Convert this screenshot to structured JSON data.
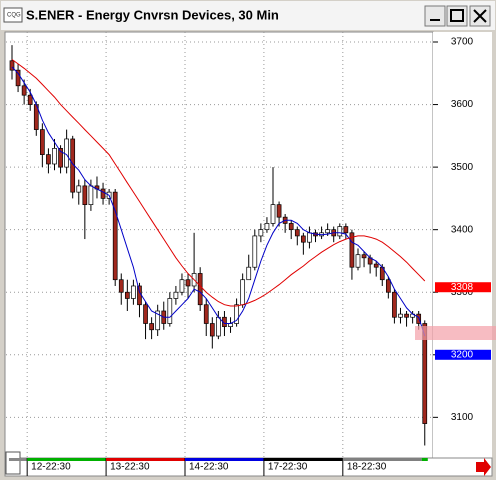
{
  "chart_data": {
    "type": "candlestick",
    "title": "S.ENER - Energy Cnvrsn Devices, 30 Min",
    "categories": [
      null,
      null,
      null,
      "12-22:30",
      null,
      null,
      null,
      null,
      null,
      null,
      null,
      null,
      null,
      null,
      null,
      null,
      "13-22:30",
      null,
      null,
      null,
      null,
      null,
      null,
      null,
      null,
      null,
      null,
      null,
      null,
      "14-22:30",
      null,
      null,
      null,
      null,
      null,
      null,
      null,
      null,
      null,
      null,
      null,
      null,
      "17-22:30",
      null,
      null,
      null,
      null,
      null,
      null,
      null,
      null,
      null,
      null,
      null,
      null,
      "18-22:30",
      null,
      null,
      null,
      null,
      null,
      null,
      null,
      null,
      null,
      null,
      null,
      null,
      null
    ],
    "open": [
      3670,
      3655,
      3630,
      3615,
      3600,
      3560,
      3520,
      3505,
      3530,
      3500,
      3545,
      3460,
      3470,
      3440,
      3470,
      3465,
      3450,
      3460,
      3320,
      3300,
      3290,
      3310,
      3280,
      3250,
      3240,
      3270,
      3250,
      3290,
      3300,
      3320,
      3310,
      3330,
      3280,
      3250,
      3230,
      3260,
      3245,
      3250,
      3280,
      3320,
      3340,
      3390,
      3400,
      3410,
      3440,
      3420,
      3410,
      3400,
      3390,
      3380,
      3395,
      3390,
      3395,
      3400,
      3390,
      3405,
      3395,
      3340,
      3360,
      3355,
      3345,
      3340,
      3320,
      3300,
      3260,
      3265,
      3260,
      3265,
      3250
    ],
    "high": [
      3695,
      3665,
      3640,
      3625,
      3605,
      3570,
      3530,
      3545,
      3535,
      3560,
      3550,
      3480,
      3480,
      3480,
      3485,
      3475,
      3465,
      3465,
      3330,
      3320,
      3320,
      3315,
      3285,
      3260,
      3280,
      3285,
      3300,
      3310,
      3330,
      3330,
      3395,
      3340,
      3290,
      3260,
      3270,
      3270,
      3260,
      3290,
      3330,
      3360,
      3400,
      3410,
      3420,
      3500,
      3445,
      3425,
      3415,
      3405,
      3395,
      3405,
      3400,
      3405,
      3410,
      3405,
      3410,
      3410,
      3400,
      3370,
      3365,
      3360,
      3350,
      3345,
      3325,
      3305,
      3275,
      3270,
      3270,
      3270,
      3255
    ],
    "low": [
      3640,
      3620,
      3600,
      3590,
      3550,
      3500,
      3490,
      3495,
      3490,
      3490,
      3450,
      3440,
      3385,
      3430,
      3450,
      3440,
      3440,
      3310,
      3280,
      3270,
      3280,
      3260,
      3225,
      3225,
      3230,
      3240,
      3245,
      3280,
      3295,
      3290,
      3300,
      3270,
      3230,
      3210,
      3225,
      3230,
      3235,
      3245,
      3275,
      3320,
      3335,
      3380,
      3395,
      3405,
      3405,
      3395,
      3385,
      3375,
      3360,
      3370,
      3380,
      3385,
      3390,
      3380,
      3385,
      3385,
      3320,
      3335,
      3340,
      3330,
      3325,
      3310,
      3290,
      3250,
      3250,
      3245,
      3250,
      3240,
      3055
    ],
    "close": [
      3655,
      3630,
      3615,
      3600,
      3560,
      3520,
      3505,
      3530,
      3500,
      3545,
      3460,
      3470,
      3440,
      3470,
      3465,
      3450,
      3460,
      3320,
      3300,
      3290,
      3310,
      3280,
      3250,
      3240,
      3270,
      3250,
      3290,
      3300,
      3320,
      3310,
      3330,
      3280,
      3250,
      3230,
      3260,
      3245,
      3250,
      3280,
      3320,
      3340,
      3390,
      3400,
      3410,
      3440,
      3420,
      3410,
      3400,
      3390,
      3380,
      3395,
      3390,
      3395,
      3400,
      3390,
      3405,
      3395,
      3340,
      3360,
      3355,
      3345,
      3340,
      3320,
      3300,
      3260,
      3265,
      3260,
      3265,
      3250,
      3090
    ],
    "up_color": "#ffffff",
    "down_color": "#a0281e",
    "series": [
      {
        "color": "#0000c8",
        "values": [
          3660,
          3650,
          3635,
          3620,
          3600,
          3575,
          3555,
          3540,
          3525,
          3520,
          3505,
          3495,
          3480,
          3470,
          3465,
          3460,
          3455,
          3430,
          3400,
          3370,
          3340,
          3300,
          3285,
          3270,
          3265,
          3260,
          3260,
          3270,
          3280,
          3290,
          3305,
          3300,
          3290,
          3275,
          3260,
          3250,
          3250,
          3255,
          3270,
          3290,
          3320,
          3350,
          3375,
          3395,
          3410,
          3415,
          3415,
          3410,
          3400,
          3395,
          3393,
          3392,
          3393,
          3395,
          3395,
          3393,
          3380,
          3375,
          3365,
          3355,
          3350,
          3340,
          3325,
          3305,
          3290,
          3275,
          3265,
          3260,
          3230
        ]
      },
      {
        "color": "#e00000",
        "values": [
          3672,
          3665,
          3658,
          3650,
          3642,
          3632,
          3622,
          3612,
          3600,
          3590,
          3580,
          3570,
          3560,
          3550,
          3540,
          3530,
          3520,
          3505,
          3490,
          3475,
          3460,
          3445,
          3430,
          3415,
          3400,
          3385,
          3370,
          3355,
          3342,
          3330,
          3320,
          3310,
          3300,
          3292,
          3285,
          3280,
          3278,
          3278,
          3280,
          3283,
          3287,
          3292,
          3298,
          3305,
          3312,
          3320,
          3328,
          3335,
          3342,
          3350,
          3357,
          3364,
          3370,
          3376,
          3381,
          3385,
          3388,
          3390,
          3390,
          3388,
          3385,
          3380,
          3373,
          3365,
          3357,
          3348,
          3338,
          3328,
          3318
        ]
      }
    ],
    "ylim": [
      3035,
      3716
    ],
    "yticks": [
      3100,
      3200,
      3300,
      3400,
      3500,
      3600,
      3700
    ],
    "price_markers": [
      {
        "value": 3308,
        "color": "#ff0000"
      },
      {
        "value": 3200,
        "color": "#0000ff"
      }
    ],
    "grid": true
  }
}
